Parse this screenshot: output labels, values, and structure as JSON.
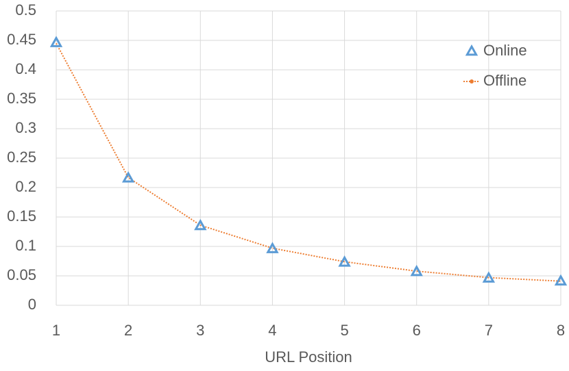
{
  "chart_data": {
    "type": "line",
    "x_label": "URL Position",
    "x": [
      1,
      2,
      3,
      4,
      5,
      6,
      7,
      8
    ],
    "series": [
      {
        "name": "Online",
        "color": "#5b9bd5",
        "marker": "triangle",
        "values": [
          0.446,
          0.216,
          0.135,
          0.096,
          0.073,
          0.057,
          0.046,
          0.041
        ]
      },
      {
        "name": "Offline",
        "color": "#ed7d31",
        "line_style": "dotted",
        "values": [
          0.445,
          0.217,
          0.136,
          0.097,
          0.074,
          0.058,
          0.047,
          0.041
        ]
      }
    ],
    "xlim": [
      1,
      8
    ],
    "xticks": [
      1,
      2,
      3,
      4,
      5,
      6,
      7,
      8
    ],
    "ylim": [
      0,
      0.5
    ],
    "yticks": [
      0,
      0.05,
      0.1,
      0.15,
      0.2,
      0.25,
      0.3,
      0.35,
      0.4,
      0.45,
      0.5
    ],
    "grid": true,
    "legend": "top-right"
  }
}
